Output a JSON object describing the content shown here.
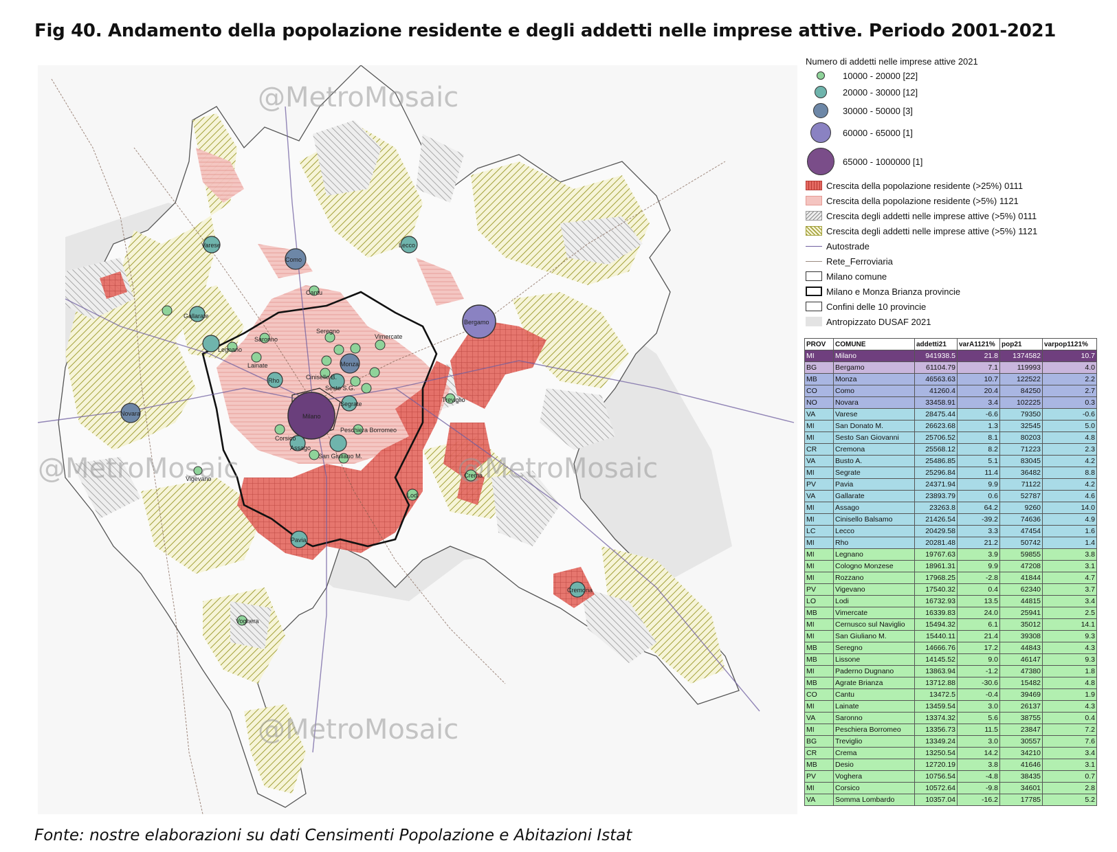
{
  "title": "Fig 40. Andamento della popolazione residente e degli addetti nelle imprese attive. Periodo 2001-2021",
  "source": "Fonte: nostre elaborazioni su dati Censimenti Popolazione e Abitazioni Istat",
  "watermark": "@MetroMosaic",
  "legend": {
    "title": "Numero di addetti nelle imprese attive 2021",
    "classes": [
      {
        "label": "10000 - 20000  [22]",
        "color": "#8fd39a"
      },
      {
        "label": "20000 - 30000   [12]",
        "color": "#6fb4ac"
      },
      {
        "label": "30000 - 50000  [3]",
        "color": "#6d87a7"
      },
      {
        "label": "60000 - 65000   [1]",
        "color": "#8a82c2"
      },
      {
        "label": "65000 - 1000000  [1]",
        "color": "#7a4d89"
      }
    ],
    "layers": [
      {
        "label": "Crescita della popolazione residente (>25%) 0111",
        "kind": "red-grid"
      },
      {
        "label": "Crescita della popolazione residente (>5%) 1121",
        "kind": "pink"
      },
      {
        "label": "Crescita degli addetti  nelle imprese attive (>5%) 0111",
        "kind": "grey-hatch"
      },
      {
        "label": "Crescita degli addetti  nelle imprese attive (>5%) 1121",
        "kind": "olive-hatch"
      },
      {
        "label": "Autostrade",
        "kind": "line-dark"
      },
      {
        "label": "Rete_Ferroviaria",
        "kind": "line-light"
      },
      {
        "label": "Milano comune",
        "kind": "box-thin"
      },
      {
        "label": "Milano e Monza Brianza provincie",
        "kind": "box-thick"
      },
      {
        "label": "Confini delle 10 provincie",
        "kind": "box-thin"
      },
      {
        "label": "Antropizzato DUSAF 2021",
        "kind": "grey-fill"
      }
    ]
  },
  "table": {
    "headers": [
      "PROV",
      "COMUNE",
      "addetti21",
      "varA1121%",
      "pop21",
      "varpop1121%"
    ],
    "rows": [
      {
        "prov": "MI",
        "comune": "Milano",
        "addetti21": "941938.5",
        "varA": "21.8",
        "pop21": "1374582",
        "varpop": "10.7",
        "tier": 0
      },
      {
        "prov": "BG",
        "comune": "Bergamo",
        "addetti21": "61104.79",
        "varA": "7.1",
        "pop21": "119993",
        "varpop": "4.0",
        "tier": 1
      },
      {
        "prov": "MB",
        "comune": "Monza",
        "addetti21": "46563.63",
        "varA": "10.7",
        "pop21": "122522",
        "varpop": "2.2",
        "tier": 2
      },
      {
        "prov": "CO",
        "comune": "Como",
        "addetti21": "41260.4",
        "varA": "20.4",
        "pop21": "84250",
        "varpop": "2.7",
        "tier": 2
      },
      {
        "prov": "NO",
        "comune": "Novara",
        "addetti21": "33458.91",
        "varA": "3.4",
        "pop21": "102225",
        "varpop": "0.3",
        "tier": 2
      },
      {
        "prov": "VA",
        "comune": "Varese",
        "addetti21": "28475.44",
        "varA": "-6.6",
        "pop21": "79350",
        "varpop": "-0.6",
        "tier": 3
      },
      {
        "prov": "MI",
        "comune": "San Donato M.",
        "addetti21": "26623.68",
        "varA": "1.3",
        "pop21": "32545",
        "varpop": "5.0",
        "tier": 3
      },
      {
        "prov": "MI",
        "comune": "Sesto San Giovanni",
        "addetti21": "25706.52",
        "varA": "8.1",
        "pop21": "80203",
        "varpop": "4.8",
        "tier": 3
      },
      {
        "prov": "CR",
        "comune": "Cremona",
        "addetti21": "25568.12",
        "varA": "8.2",
        "pop21": "71223",
        "varpop": "2.3",
        "tier": 3
      },
      {
        "prov": "VA",
        "comune": "Busto A.",
        "addetti21": "25486.85",
        "varA": "5.1",
        "pop21": "83045",
        "varpop": "4.2",
        "tier": 3
      },
      {
        "prov": "MI",
        "comune": "Segrate",
        "addetti21": "25296.84",
        "varA": "11.4",
        "pop21": "36482",
        "varpop": "8.8",
        "tier": 3
      },
      {
        "prov": "PV",
        "comune": "Pavia",
        "addetti21": "24371.94",
        "varA": "9.9",
        "pop21": "71122",
        "varpop": "4.2",
        "tier": 3
      },
      {
        "prov": "VA",
        "comune": "Gallarate",
        "addetti21": "23893.79",
        "varA": "0.6",
        "pop21": "52787",
        "varpop": "4.6",
        "tier": 3
      },
      {
        "prov": "MI",
        "comune": "Assago",
        "addetti21": "23263.8",
        "varA": "64.2",
        "pop21": "9260",
        "varpop": "14.0",
        "tier": 3
      },
      {
        "prov": "MI",
        "comune": "Cinisello Balsamo",
        "addetti21": "21426.54",
        "varA": "-39.2",
        "pop21": "74636",
        "varpop": "4.9",
        "tier": 3
      },
      {
        "prov": "LC",
        "comune": "Lecco",
        "addetti21": "20429.58",
        "varA": "3.3",
        "pop21": "47454",
        "varpop": "1.6",
        "tier": 3
      },
      {
        "prov": "MI",
        "comune": "Rho",
        "addetti21": "20281.48",
        "varA": "21.2",
        "pop21": "50742",
        "varpop": "1.4",
        "tier": 3
      },
      {
        "prov": "MI",
        "comune": "Legnano",
        "addetti21": "19767.63",
        "varA": "3.9",
        "pop21": "59855",
        "varpop": "3.8",
        "tier": 4
      },
      {
        "prov": "MI",
        "comune": "Cologno Monzese",
        "addetti21": "18961.31",
        "varA": "9.9",
        "pop21": "47208",
        "varpop": "3.1",
        "tier": 4
      },
      {
        "prov": "MI",
        "comune": "Rozzano",
        "addetti21": "17968.25",
        "varA": "-2.8",
        "pop21": "41844",
        "varpop": "4.7",
        "tier": 4
      },
      {
        "prov": "PV",
        "comune": "Vigevano",
        "addetti21": "17540.32",
        "varA": "0.4",
        "pop21": "62340",
        "varpop": "3.7",
        "tier": 4
      },
      {
        "prov": "LO",
        "comune": "Lodi",
        "addetti21": "16732.93",
        "varA": "13.5",
        "pop21": "44815",
        "varpop": "3.4",
        "tier": 4
      },
      {
        "prov": "MB",
        "comune": "Vimercate",
        "addetti21": "16339.83",
        "varA": "24.0",
        "pop21": "25941",
        "varpop": "2.5",
        "tier": 4
      },
      {
        "prov": "MI",
        "comune": "Cernusco sul Naviglio",
        "addetti21": "15494.32",
        "varA": "6.1",
        "pop21": "35012",
        "varpop": "14.1",
        "tier": 4
      },
      {
        "prov": "MI",
        "comune": "San Giuliano M.",
        "addetti21": "15440.11",
        "varA": "21.4",
        "pop21": "39308",
        "varpop": "9.3",
        "tier": 4
      },
      {
        "prov": "MB",
        "comune": "Seregno",
        "addetti21": "14666.76",
        "varA": "17.2",
        "pop21": "44843",
        "varpop": "4.3",
        "tier": 4
      },
      {
        "prov": "MB",
        "comune": "Lissone",
        "addetti21": "14145.52",
        "varA": "9.0",
        "pop21": "46147",
        "varpop": "9.3",
        "tier": 4
      },
      {
        "prov": "MI",
        "comune": "Paderno Dugnano",
        "addetti21": "13863.94",
        "varA": "-1.2",
        "pop21": "47380",
        "varpop": "1.8",
        "tier": 4
      },
      {
        "prov": "MB",
        "comune": "Agrate Brianza",
        "addetti21": "13712.88",
        "varA": "-30.6",
        "pop21": "15482",
        "varpop": "4.8",
        "tier": 4
      },
      {
        "prov": "CO",
        "comune": "Cantu",
        "addetti21": "13472.5",
        "varA": "-0.4",
        "pop21": "39469",
        "varpop": "1.9",
        "tier": 4
      },
      {
        "prov": "MI",
        "comune": "Lainate",
        "addetti21": "13459.54",
        "varA": "3.0",
        "pop21": "26137",
        "varpop": "4.3",
        "tier": 4
      },
      {
        "prov": "VA",
        "comune": "Saronno",
        "addetti21": "13374.32",
        "varA": "5.6",
        "pop21": "38755",
        "varpop": "0.4",
        "tier": 4
      },
      {
        "prov": "MI",
        "comune": "Peschiera Borromeo",
        "addetti21": "13356.73",
        "varA": "11.5",
        "pop21": "23847",
        "varpop": "7.2",
        "tier": 4
      },
      {
        "prov": "BG",
        "comune": "Treviglio",
        "addetti21": "13349.24",
        "varA": "3.0",
        "pop21": "30557",
        "varpop": "7.6",
        "tier": 4
      },
      {
        "prov": "CR",
        "comune": "Crema",
        "addetti21": "13250.54",
        "varA": "14.2",
        "pop21": "34210",
        "varpop": "3.4",
        "tier": 4
      },
      {
        "prov": "MB",
        "comune": "Desio",
        "addetti21": "12720.19",
        "varA": "3.8",
        "pop21": "41646",
        "varpop": "3.1",
        "tier": 4
      },
      {
        "prov": "PV",
        "comune": "Voghera",
        "addetti21": "10756.54",
        "varA": "-4.8",
        "pop21": "38435",
        "varpop": "0.7",
        "tier": 4
      },
      {
        "prov": "MI",
        "comune": "Corsico",
        "addetti21": "10572.64",
        "varA": "-9.8",
        "pop21": "34601",
        "varpop": "2.8",
        "tier": 4
      },
      {
        "prov": "VA",
        "comune": "Somma Lombardo",
        "addetti21": "10357.04",
        "varA": "-16.2",
        "pop21": "17785",
        "varpop": "5.2",
        "tier": 4
      }
    ]
  },
  "map_labels": [
    "Varese",
    "Como",
    "Lecco",
    "Cantu",
    "Gallarate",
    "Legnano",
    "Saronno",
    "Seregno",
    "Lainate",
    "Rho",
    "Cinisello B.",
    "Sesto S.G.",
    "Monza",
    "Vimercate",
    "Bergamo",
    "Novara",
    "Milano",
    "Segrate",
    "Peschiera Borromeo",
    "Corsico",
    "Assago",
    "San Giuliano M.",
    "Treviglio",
    "Crema",
    "Lodi",
    "Vigevano",
    "Pavia",
    "Cremona",
    "Voghera"
  ]
}
